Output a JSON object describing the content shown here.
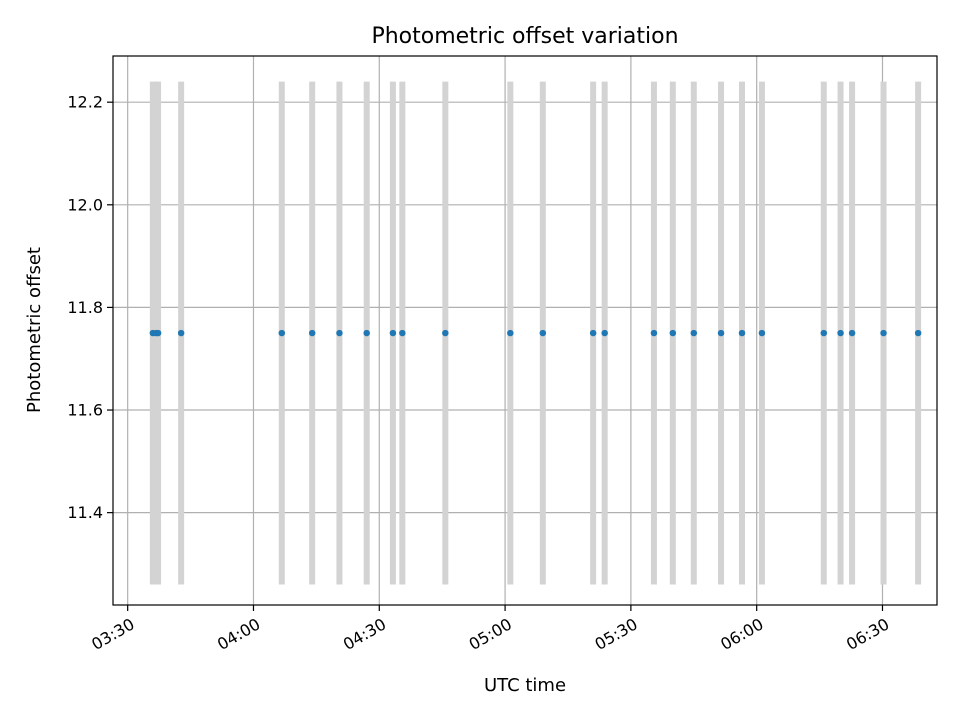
{
  "chart_data": {
    "type": "scatter",
    "title": "Photometric offset variation",
    "xlabel": "UTC time",
    "ylabel": "Photometric offset",
    "xlim": [
      "03:26:30",
      "06:43:00"
    ],
    "ylim": [
      11.22,
      12.29
    ],
    "grid": true,
    "x_ticks": [
      "03:30",
      "04:00",
      "04:30",
      "05:00",
      "05:30",
      "06:00",
      "06:30"
    ],
    "y_ticks": [
      "11.4",
      "11.6",
      "11.8",
      "12.0",
      "12.2"
    ],
    "error_bar": {
      "low": 11.26,
      "high": 12.24
    },
    "points_y": 11.75,
    "x_times": [
      "03:36:00",
      "03:36:45",
      "03:37:15",
      "03:42:45",
      "04:06:45",
      "04:14:00",
      "04:20:30",
      "04:27:00",
      "04:33:15",
      "04:35:30",
      "04:45:45",
      "05:01:15",
      "05:09:00",
      "05:21:00",
      "05:23:45",
      "05:35:30",
      "05:40:00",
      "05:45:00",
      "05:51:30",
      "05:56:30",
      "06:01:15",
      "06:16:00",
      "06:20:00",
      "06:22:45",
      "06:30:15",
      "06:38:30"
    ],
    "colors": {
      "points": "#1f77b4",
      "error_bars": "#d3d3d3",
      "grid": "#b0b0b0"
    }
  }
}
